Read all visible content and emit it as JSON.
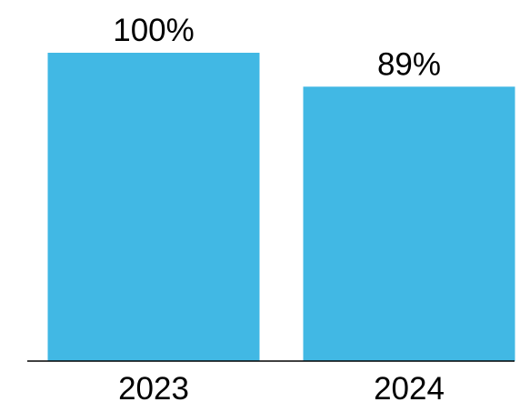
{
  "chart_data": {
    "type": "bar",
    "categories": [
      "2023",
      "2024"
    ],
    "values": [
      100,
      89
    ],
    "data_labels": [
      "100%",
      "89%"
    ],
    "title": "",
    "xlabel": "",
    "ylabel": "",
    "ylim": [
      0,
      100
    ],
    "grid": false,
    "legend": "none",
    "bar_color": "#41B8E4",
    "axis_color": "#000000"
  }
}
